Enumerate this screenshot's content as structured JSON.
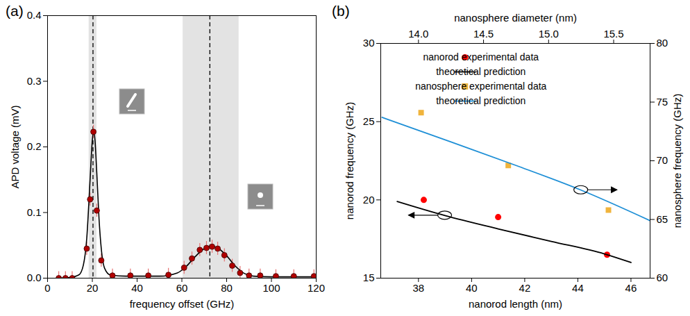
{
  "chart_data": [
    {
      "type": "scatter",
      "title": "(a)",
      "xlabel": "frequency offset (GHz)",
      "ylabel": "APD voltage (mV)",
      "xlim": [
        0,
        120
      ],
      "xticks": [
        0,
        20,
        40,
        60,
        80,
        100,
        120
      ],
      "ylim": [
        0,
        0.4
      ],
      "yticks": [
        {
          "value": 0,
          "label": "0.0"
        },
        0.1,
        0.2,
        0.3,
        0.4
      ],
      "grid": false,
      "series": [
        {
          "type": "scatter",
          "color": "#b00000",
          "marker": "circle",
          "x": [
            5,
            8,
            11,
            17.5,
            19,
            20.5,
            22,
            24,
            29,
            37,
            45,
            54,
            61,
            64.5,
            68,
            71,
            73.5,
            76,
            79,
            82.5,
            86,
            90,
            95,
            102,
            110,
            119
          ],
          "values": [
            0,
            0,
            0,
            0.045,
            0.12,
            0.223,
            0.103,
            0.027,
            0.004,
            0.004,
            0.004,
            0.005,
            0.016,
            0.03,
            0.043,
            0.046,
            0.048,
            0.045,
            0.035,
            0.019,
            0.008,
            0.004,
            0.004,
            0.003,
            0.003,
            0.003
          ],
          "errors": [
            0.01,
            0.01,
            0.01,
            0.01,
            0.01,
            0.01,
            0.01,
            0.01,
            0.01,
            0.01,
            0.01,
            0.01,
            0.01,
            0.01,
            0.01,
            0.01,
            0.01,
            0.01,
            0.01,
            0.01,
            0.01,
            0.01,
            0.01,
            0.01,
            0.01,
            0.01
          ]
        },
        {
          "type": "line",
          "color": "#000000",
          "line_style": "solid",
          "x": [
            5,
            10,
            14,
            16,
            17.5,
            19,
            20,
            20.6,
            21.2,
            22,
            23,
            24,
            25.5,
            28,
            35,
            50,
            58,
            62,
            66,
            70,
            73,
            76,
            80,
            84,
            88,
            92,
            100,
            120
          ],
          "values": [
            0,
            0.001,
            0.005,
            0.02,
            0.06,
            0.15,
            0.21,
            0.225,
            0.21,
            0.16,
            0.09,
            0.045,
            0.015,
            0.005,
            0.003,
            0.003,
            0.008,
            0.018,
            0.033,
            0.045,
            0.049,
            0.046,
            0.034,
            0.018,
            0.007,
            0.003,
            0.002,
            0.002
          ]
        }
      ],
      "shaded_regions": [
        [
          18.5,
          22
        ],
        [
          60.5,
          85.5
        ]
      ],
      "reference_lines": {
        "values": [
          20.3,
          72.5
        ],
        "line_style": "dashed"
      }
    },
    {
      "type": "scatter",
      "title": "(b)",
      "xlabel": "nanorod length (nm)",
      "ylabel": "nanorod frequency (GHz)",
      "x2label": "nanosphere diameter (nm)",
      "y2label": "nanosphere frequency (GHz)",
      "xlim": [
        36.58,
        46.72
      ],
      "xticks": [
        38,
        40,
        42,
        44,
        46
      ],
      "x2lim": [
        13.71,
        15.78
      ],
      "x2ticks": [
        {
          "value": 14,
          "label": "14.0"
        },
        14.5,
        {
          "value": 15,
          "label": "15.0"
        },
        15.5
      ],
      "ylim": [
        15,
        30
      ],
      "yticks": [
        15,
        20,
        25,
        30
      ],
      "y2lim": [
        60,
        80
      ],
      "y2ticks": [
        60,
        65,
        70,
        75,
        80
      ],
      "grid": false,
      "legend": "upper right",
      "series": [
        {
          "name": "nanorod experimental data",
          "type": "scatter",
          "marker": "circle",
          "color": "#ff0000",
          "x": [
            38.2,
            41.0,
            45.1
          ],
          "values": [
            20.0,
            18.9,
            16.5
          ]
        },
        {
          "name": "theoretical prediction",
          "type": "line",
          "color": "#000000",
          "x": [
            37.2,
            39,
            41,
            43,
            45,
            46
          ],
          "values": [
            19.9,
            19.0,
            18.15,
            17.35,
            16.55,
            16.0
          ]
        },
        {
          "name": "nanosphere experimental data",
          "type": "scatter",
          "marker": "square",
          "color": "#f0b43c",
          "axis": "y2",
          "x": [
            14.02,
            14.69,
            15.46
          ],
          "values": [
            74.1,
            69.6,
            65.8
          ]
        },
        {
          "name": "theoretical prediction",
          "type": "line",
          "color": "#1e8fd6",
          "axis": "y2",
          "x": [
            13.72,
            14.25,
            14.75,
            15.25,
            15.78
          ],
          "values": [
            73.7,
            71.6,
            69.6,
            67.5,
            64.9
          ]
        }
      ]
    }
  ]
}
